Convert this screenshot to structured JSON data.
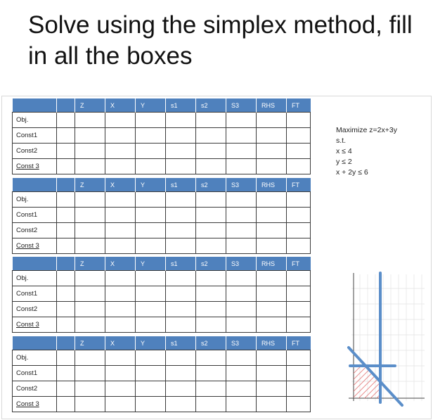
{
  "title": "Solve using the simplex method, fill in all the boxes",
  "columns": [
    "",
    "Z",
    "X",
    "Y",
    "s1",
    "s2",
    "S3",
    "RHS",
    "FT"
  ],
  "rows": [
    "Obj.",
    "Const1",
    "Const2",
    "Const 3"
  ],
  "tableau_count": 4,
  "problem": {
    "objective": "Maximize z=2x+3y",
    "st": "s.t.",
    "constraints": [
      "x ≤ 4",
      "y ≤ 2",
      "x + 2y ≤ 6"
    ]
  },
  "colors": {
    "header": "#4f81bd",
    "constraint_line": "#5b8ec9",
    "feasible_hatch": "#e06666"
  }
}
